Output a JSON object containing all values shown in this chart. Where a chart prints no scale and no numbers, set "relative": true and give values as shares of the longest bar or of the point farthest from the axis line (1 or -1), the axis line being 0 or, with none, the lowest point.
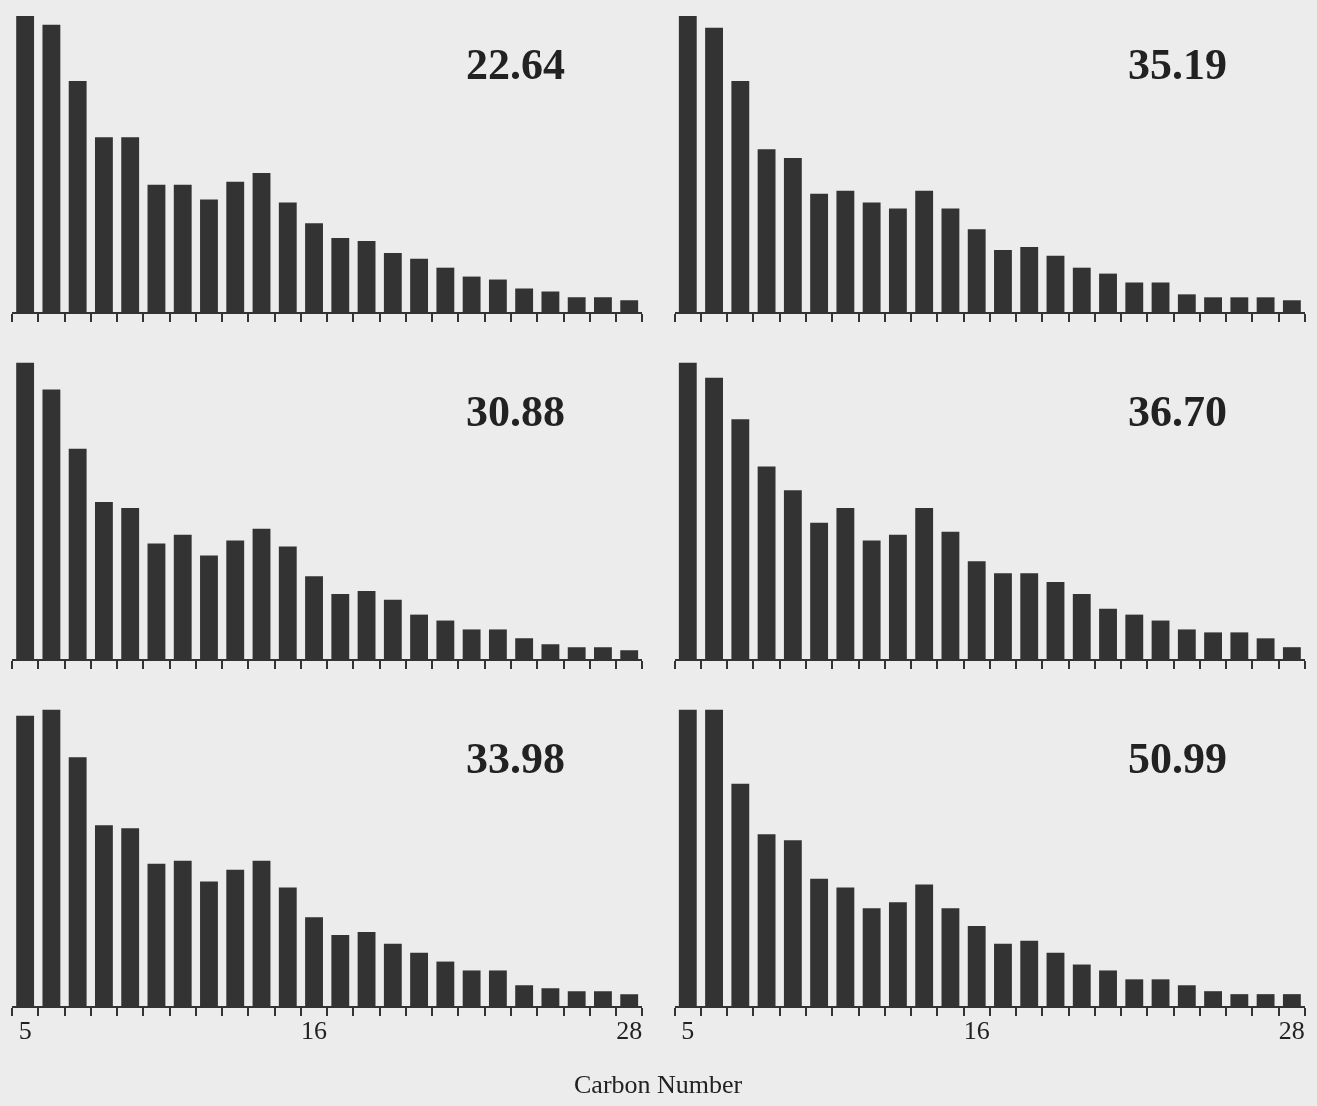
{
  "chart_data": [
    {
      "type": "bar",
      "relative": true,
      "x": [
        5,
        6,
        7,
        8,
        9,
        10,
        11,
        12,
        13,
        14,
        15,
        16,
        17,
        18,
        19,
        20,
        21,
        22,
        23,
        24,
        25,
        26,
        27,
        28
      ],
      "values": [
        1,
        0.97,
        0.78,
        0.59,
        0.59,
        0.43,
        0.43,
        0.38,
        0.44,
        0.47,
        0.37,
        0.3,
        0.25,
        0.24,
        0.2,
        0.18,
        0.15,
        0.12,
        0.11,
        0.08,
        0.07,
        0.05,
        0.05,
        0.04
      ],
      "color": "#333333",
      "xlim": [
        4.5,
        28.5
      ],
      "xticks": [
        {
          "value": 4.5,
          "label": null
        },
        {
          "value": 5.5,
          "label": null
        },
        {
          "value": 6.5,
          "label": null
        },
        {
          "value": 7.5,
          "label": null
        },
        {
          "value": 8.5,
          "label": null
        },
        {
          "value": 9.5,
          "label": null
        },
        {
          "value": 10.5,
          "label": null
        },
        {
          "value": 11.5,
          "label": null
        },
        {
          "value": 12.5,
          "label": null
        },
        {
          "value": 13.5,
          "label": null
        },
        {
          "value": 14.5,
          "label": null
        },
        {
          "value": 15.5,
          "label": null
        },
        {
          "value": 16.5,
          "label": null
        },
        {
          "value": 17.5,
          "label": null
        },
        {
          "value": 18.5,
          "label": null
        },
        {
          "value": 19.5,
          "label": null
        },
        {
          "value": 20.5,
          "label": null
        },
        {
          "value": 21.5,
          "label": null
        },
        {
          "value": 22.5,
          "label": null
        },
        {
          "value": 23.5,
          "label": null
        },
        {
          "value": 24.5,
          "label": null
        },
        {
          "value": 25.5,
          "label": null
        },
        {
          "value": 26.5,
          "label": null
        },
        {
          "value": 27.5,
          "label": null
        },
        {
          "value": 28.5,
          "label": null
        }
      ],
      "tick_labels": false,
      "annotations": [
        "22.64"
      ]
    },
    {
      "type": "bar",
      "relative": true,
      "x": [
        5,
        6,
        7,
        8,
        9,
        10,
        11,
        12,
        13,
        14,
        15,
        16,
        17,
        18,
        19,
        20,
        21,
        22,
        23,
        24,
        25,
        26,
        27,
        28
      ],
      "values": [
        1,
        0.96,
        0.78,
        0.55,
        0.52,
        0.4,
        0.41,
        0.37,
        0.35,
        0.41,
        0.35,
        0.28,
        0.21,
        0.22,
        0.19,
        0.15,
        0.13,
        0.1,
        0.1,
        0.06,
        0.05,
        0.05,
        0.05,
        0.04
      ],
      "color": "#333333",
      "xlim": [
        4.5,
        28.5
      ],
      "xticks": [
        {
          "value": 4.5,
          "label": null
        },
        {
          "value": 5.5,
          "label": null
        },
        {
          "value": 6.5,
          "label": null
        },
        {
          "value": 7.5,
          "label": null
        },
        {
          "value": 8.5,
          "label": null
        },
        {
          "value": 9.5,
          "label": null
        },
        {
          "value": 10.5,
          "label": null
        },
        {
          "value": 11.5,
          "label": null
        },
        {
          "value": 12.5,
          "label": null
        },
        {
          "value": 13.5,
          "label": null
        },
        {
          "value": 14.5,
          "label": null
        },
        {
          "value": 15.5,
          "label": null
        },
        {
          "value": 16.5,
          "label": null
        },
        {
          "value": 17.5,
          "label": null
        },
        {
          "value": 18.5,
          "label": null
        },
        {
          "value": 19.5,
          "label": null
        },
        {
          "value": 20.5,
          "label": null
        },
        {
          "value": 21.5,
          "label": null
        },
        {
          "value": 22.5,
          "label": null
        },
        {
          "value": 23.5,
          "label": null
        },
        {
          "value": 24.5,
          "label": null
        },
        {
          "value": 25.5,
          "label": null
        },
        {
          "value": 26.5,
          "label": null
        },
        {
          "value": 27.5,
          "label": null
        },
        {
          "value": 28.5,
          "label": null
        }
      ],
      "tick_labels": false,
      "annotations": [
        "35.19"
      ]
    },
    {
      "type": "bar",
      "relative": true,
      "x": [
        5,
        6,
        7,
        8,
        9,
        10,
        11,
        12,
        13,
        14,
        15,
        16,
        17,
        18,
        19,
        20,
        21,
        22,
        23,
        24,
        25,
        26,
        27,
        28
      ],
      "values": [
        1,
        0.91,
        0.71,
        0.53,
        0.51,
        0.39,
        0.42,
        0.35,
        0.4,
        0.44,
        0.38,
        0.28,
        0.22,
        0.23,
        0.2,
        0.15,
        0.13,
        0.1,
        0.1,
        0.07,
        0.05,
        0.04,
        0.04,
        0.03
      ],
      "color": "#333333",
      "xlim": [
        4.5,
        28.5
      ],
      "xticks": [
        {
          "value": 4.5,
          "label": null
        },
        {
          "value": 5.5,
          "label": null
        },
        {
          "value": 6.5,
          "label": null
        },
        {
          "value": 7.5,
          "label": null
        },
        {
          "value": 8.5,
          "label": null
        },
        {
          "value": 9.5,
          "label": null
        },
        {
          "value": 10.5,
          "label": null
        },
        {
          "value": 11.5,
          "label": null
        },
        {
          "value": 12.5,
          "label": null
        },
        {
          "value": 13.5,
          "label": null
        },
        {
          "value": 14.5,
          "label": null
        },
        {
          "value": 15.5,
          "label": null
        },
        {
          "value": 16.5,
          "label": null
        },
        {
          "value": 17.5,
          "label": null
        },
        {
          "value": 18.5,
          "label": null
        },
        {
          "value": 19.5,
          "label": null
        },
        {
          "value": 20.5,
          "label": null
        },
        {
          "value": 21.5,
          "label": null
        },
        {
          "value": 22.5,
          "label": null
        },
        {
          "value": 23.5,
          "label": null
        },
        {
          "value": 24.5,
          "label": null
        },
        {
          "value": 25.5,
          "label": null
        },
        {
          "value": 26.5,
          "label": null
        },
        {
          "value": 27.5,
          "label": null
        },
        {
          "value": 28.5,
          "label": null
        }
      ],
      "tick_labels": false,
      "annotations": [
        "30.88"
      ]
    },
    {
      "type": "bar",
      "relative": true,
      "x": [
        5,
        6,
        7,
        8,
        9,
        10,
        11,
        12,
        13,
        14,
        15,
        16,
        17,
        18,
        19,
        20,
        21,
        22,
        23,
        24,
        25,
        26,
        27,
        28
      ],
      "values": [
        1,
        0.95,
        0.81,
        0.65,
        0.57,
        0.46,
        0.51,
        0.4,
        0.42,
        0.51,
        0.43,
        0.33,
        0.29,
        0.29,
        0.26,
        0.22,
        0.17,
        0.15,
        0.13,
        0.1,
        0.09,
        0.09,
        0.07,
        0.04
      ],
      "color": "#333333",
      "xlim": [
        4.5,
        28.5
      ],
      "xticks": [
        {
          "value": 4.5,
          "label": null
        },
        {
          "value": 5.5,
          "label": null
        },
        {
          "value": 6.5,
          "label": null
        },
        {
          "value": 7.5,
          "label": null
        },
        {
          "value": 8.5,
          "label": null
        },
        {
          "value": 9.5,
          "label": null
        },
        {
          "value": 10.5,
          "label": null
        },
        {
          "value": 11.5,
          "label": null
        },
        {
          "value": 12.5,
          "label": null
        },
        {
          "value": 13.5,
          "label": null
        },
        {
          "value": 14.5,
          "label": null
        },
        {
          "value": 15.5,
          "label": null
        },
        {
          "value": 16.5,
          "label": null
        },
        {
          "value": 17.5,
          "label": null
        },
        {
          "value": 18.5,
          "label": null
        },
        {
          "value": 19.5,
          "label": null
        },
        {
          "value": 20.5,
          "label": null
        },
        {
          "value": 21.5,
          "label": null
        },
        {
          "value": 22.5,
          "label": null
        },
        {
          "value": 23.5,
          "label": null
        },
        {
          "value": 24.5,
          "label": null
        },
        {
          "value": 25.5,
          "label": null
        },
        {
          "value": 26.5,
          "label": null
        },
        {
          "value": 27.5,
          "label": null
        },
        {
          "value": 28.5,
          "label": null
        }
      ],
      "tick_labels": false,
      "annotations": [
        "36.70"
      ]
    },
    {
      "type": "bar",
      "relative": true,
      "x": [
        5,
        6,
        7,
        8,
        9,
        10,
        11,
        12,
        13,
        14,
        15,
        16,
        17,
        18,
        19,
        20,
        21,
        22,
        23,
        24,
        25,
        26,
        27,
        28
      ],
      "values": [
        0.98,
        1,
        0.84,
        0.61,
        0.6,
        0.48,
        0.49,
        0.42,
        0.46,
        0.49,
        0.4,
        0.3,
        0.24,
        0.25,
        0.21,
        0.18,
        0.15,
        0.12,
        0.12,
        0.07,
        0.06,
        0.05,
        0.05,
        0.04
      ],
      "color": "#333333",
      "xlim": [
        4.5,
        28.5
      ],
      "xticks": [
        5,
        16,
        28,
        {
          "value": 4.5,
          "label": null
        },
        {
          "value": 5.5,
          "label": null
        },
        {
          "value": 6.5,
          "label": null
        },
        {
          "value": 7.5,
          "label": null
        },
        {
          "value": 8.5,
          "label": null
        },
        {
          "value": 9.5,
          "label": null
        },
        {
          "value": 10.5,
          "label": null
        },
        {
          "value": 11.5,
          "label": null
        },
        {
          "value": 12.5,
          "label": null
        },
        {
          "value": 13.5,
          "label": null
        },
        {
          "value": 14.5,
          "label": null
        },
        {
          "value": 15.5,
          "label": null
        },
        {
          "value": 16.5,
          "label": null
        },
        {
          "value": 17.5,
          "label": null
        },
        {
          "value": 18.5,
          "label": null
        },
        {
          "value": 19.5,
          "label": null
        },
        {
          "value": 20.5,
          "label": null
        },
        {
          "value": 21.5,
          "label": null
        },
        {
          "value": 22.5,
          "label": null
        },
        {
          "value": 23.5,
          "label": null
        },
        {
          "value": 24.5,
          "label": null
        },
        {
          "value": 25.5,
          "label": null
        },
        {
          "value": 26.5,
          "label": null
        },
        {
          "value": 27.5,
          "label": null
        },
        {
          "value": 28.5,
          "label": null
        }
      ],
      "tick_labels": "x",
      "xlabel": "Carbon Number",
      "annotations": [
        "33.98"
      ]
    },
    {
      "type": "bar",
      "relative": true,
      "x": [
        5,
        6,
        7,
        8,
        9,
        10,
        11,
        12,
        13,
        14,
        15,
        16,
        17,
        18,
        19,
        20,
        21,
        22,
        23,
        24,
        25,
        26,
        27,
        28
      ],
      "values": [
        1,
        1,
        0.75,
        0.58,
        0.56,
        0.43,
        0.4,
        0.33,
        0.35,
        0.41,
        0.33,
        0.27,
        0.21,
        0.22,
        0.18,
        0.14,
        0.12,
        0.09,
        0.09,
        0.07,
        0.05,
        0.04,
        0.04,
        0.04
      ],
      "color": "#333333",
      "xlim": [
        4.5,
        28.5
      ],
      "xticks": [
        5,
        16,
        28,
        {
          "value": 4.5,
          "label": null
        },
        {
          "value": 5.5,
          "label": null
        },
        {
          "value": 6.5,
          "label": null
        },
        {
          "value": 7.5,
          "label": null
        },
        {
          "value": 8.5,
          "label": null
        },
        {
          "value": 9.5,
          "label": null
        },
        {
          "value": 10.5,
          "label": null
        },
        {
          "value": 11.5,
          "label": null
        },
        {
          "value": 12.5,
          "label": null
        },
        {
          "value": 13.5,
          "label": null
        },
        {
          "value": 14.5,
          "label": null
        },
        {
          "value": 15.5,
          "label": null
        },
        {
          "value": 16.5,
          "label": null
        },
        {
          "value": 17.5,
          "label": null
        },
        {
          "value": 18.5,
          "label": null
        },
        {
          "value": 19.5,
          "label": null
        },
        {
          "value": 20.5,
          "label": null
        },
        {
          "value": 21.5,
          "label": null
        },
        {
          "value": 22.5,
          "label": null
        },
        {
          "value": 23.5,
          "label": null
        },
        {
          "value": 24.5,
          "label": null
        },
        {
          "value": 25.5,
          "label": null
        },
        {
          "value": 26.5,
          "label": null
        },
        {
          "value": 27.5,
          "label": null
        },
        {
          "value": 28.5,
          "label": null
        }
      ],
      "tick_labels": "x",
      "annotations": [
        "50.99"
      ]
    }
  ]
}
